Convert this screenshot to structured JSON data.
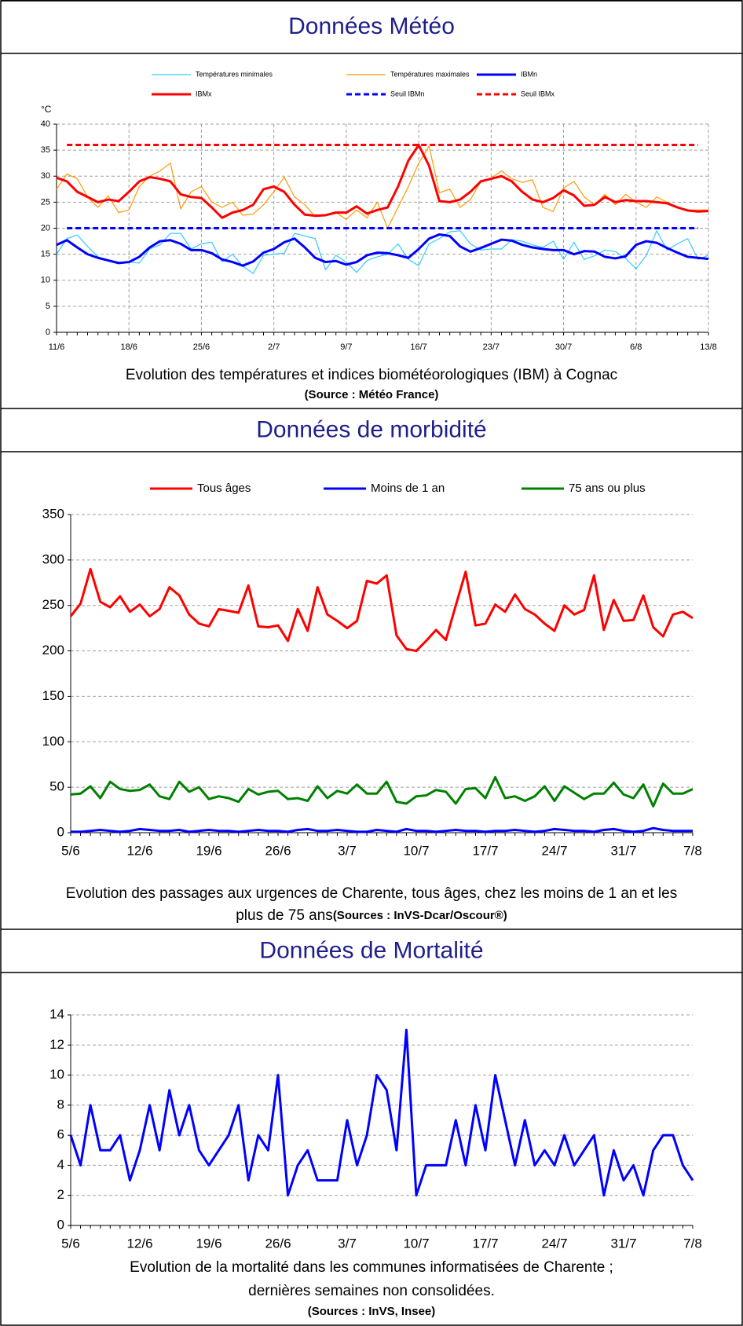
{
  "chart_data": [
    {
      "type": "line",
      "heading": "Données Météo",
      "caption": [
        "Evolution des températures et indices biométéorologiques (IBM) à Cognac"
      ],
      "source": "(Source : Météo France)",
      "ylabel": "°C",
      "categories": [
        "11/6",
        null,
        null,
        null,
        null,
        null,
        null,
        "18/6",
        null,
        null,
        null,
        null,
        null,
        null,
        "25/6",
        null,
        null,
        null,
        null,
        null,
        null,
        "2/7",
        null,
        null,
        null,
        null,
        null,
        null,
        "9/7",
        null,
        null,
        null,
        null,
        null,
        null,
        "16/7",
        null,
        null,
        null,
        null,
        null,
        null,
        "23/7",
        null,
        null,
        null,
        null,
        null,
        null,
        "30/7",
        null,
        null,
        null,
        null,
        null,
        null,
        "6/8",
        null,
        null,
        null,
        null,
        null,
        null,
        "13/8"
      ],
      "ylim": [
        0,
        40
      ],
      "yticks": [
        0,
        5,
        10,
        15,
        20,
        25,
        30,
        35,
        40
      ],
      "grid": "both",
      "series": [
        {
          "name": "Températures minimales",
          "color": "#33ccff",
          "thick": false,
          "dashed": false,
          "values": [
            15,
            18,
            18.7,
            16.5,
            14.5,
            13.7,
            13.5,
            13.5,
            13.3,
            16,
            16.8,
            19,
            19,
            16,
            17,
            17.3,
            13.5,
            15,
            12.7,
            11.3,
            14.8,
            15,
            15.2,
            19,
            18.5,
            18,
            12,
            14.8,
            13.5,
            11.5,
            13.8,
            14.5,
            15,
            17,
            14,
            12.8,
            17,
            18,
            19.3,
            19.5,
            17,
            15.8,
            16,
            16,
            17.8,
            17.5,
            16.8,
            16.3,
            17.5,
            14,
            17.3,
            14,
            14.7,
            15.8,
            15.5,
            14.2,
            12.2,
            14.8,
            19.5,
            15.8,
            17,
            18,
            14,
            14.8
          ]
        },
        {
          "name": "Températures maximales",
          "color": "#ff9900",
          "thick": false,
          "dashed": false,
          "values": [
            27.5,
            30.4,
            29.5,
            26,
            24,
            26.2,
            23,
            23.5,
            28,
            30,
            31,
            32.5,
            23.7,
            27,
            28,
            25,
            24,
            25,
            22.5,
            22.7,
            24.5,
            27,
            29.8,
            26,
            24.5,
            22.2,
            22.5,
            23,
            21.7,
            23.5,
            22,
            25,
            20,
            24,
            28,
            32.5,
            35.8,
            26.8,
            27.5,
            24,
            25.5,
            29,
            29.6,
            31,
            29.5,
            28.8,
            29.3,
            24,
            23.2,
            27.7,
            29,
            26,
            24.5,
            26.5,
            24.5,
            26.5,
            25,
            24,
            26,
            25,
            24,
            23.5,
            23.5,
            23.5
          ]
        },
        {
          "name": "IBMn",
          "color": "#0000ff",
          "thick": true,
          "dashed": false,
          "values": [
            16.8,
            17.7,
            16.3,
            15,
            14.3,
            13.8,
            13.3,
            13.5,
            14.5,
            16.3,
            17.5,
            17.7,
            17,
            15.8,
            15.8,
            15.2,
            14,
            13.5,
            12.8,
            13.6,
            15.3,
            16,
            17.3,
            18,
            16.3,
            14.3,
            13.5,
            13.7,
            13,
            13.5,
            14.8,
            15.3,
            15.2,
            14.8,
            14.3,
            16,
            18,
            18.8,
            18.5,
            16.5,
            15.5,
            16.2,
            17,
            17.8,
            17.6,
            16.8,
            16.3,
            16,
            15.8,
            15.8,
            15,
            15.6,
            15.5,
            14.5,
            14.2,
            14.6,
            16.8,
            17.5,
            17.2,
            16.2,
            15.3,
            14.5,
            14.3,
            14.1
          ]
        },
        {
          "name": "IBMx",
          "color": "#ff0000",
          "thick": true,
          "dashed": false,
          "values": [
            29.7,
            29,
            27,
            26,
            25,
            25.5,
            25.2,
            27,
            29,
            29.8,
            29.5,
            29,
            26.5,
            26,
            25.8,
            24,
            22,
            23,
            23.5,
            24.5,
            27.5,
            28,
            27,
            24.5,
            22.6,
            22.4,
            22.5,
            23,
            23,
            24.2,
            22.8,
            23.5,
            24,
            28,
            33,
            36,
            32,
            25.2,
            25,
            25.5,
            27,
            29,
            29.5,
            30,
            29,
            27,
            25.5,
            25,
            25.8,
            27.3,
            26.3,
            24.3,
            24.5,
            26,
            25,
            25.4,
            25.2,
            25.2,
            25,
            24.8,
            24,
            23.4,
            23.2,
            23.3
          ]
        },
        {
          "name": "Seuil IBMn",
          "color": "#0000ff",
          "thick": true,
          "dashed": true,
          "values": [
            null,
            20,
            20,
            20,
            20,
            20,
            20,
            20,
            20,
            20,
            20,
            20,
            20,
            20,
            20,
            20,
            20,
            20,
            20,
            20,
            20,
            20,
            20,
            20,
            20,
            20,
            20,
            20,
            20,
            20,
            20,
            20,
            20,
            20,
            20,
            20,
            20,
            20,
            20,
            20,
            20,
            20,
            20,
            20,
            20,
            20,
            20,
            20,
            20,
            20,
            20,
            20,
            20,
            20,
            20,
            20,
            20,
            20,
            20,
            20,
            20,
            20,
            20,
            null
          ]
        },
        {
          "name": "Seuil IBMx",
          "color": "#ff0000",
          "thick": true,
          "dashed": true,
          "values": [
            null,
            36,
            36,
            36,
            36,
            36,
            36,
            36,
            36,
            36,
            36,
            36,
            36,
            36,
            36,
            36,
            36,
            36,
            36,
            36,
            36,
            36,
            36,
            36,
            36,
            36,
            36,
            36,
            36,
            36,
            36,
            36,
            36,
            36,
            36,
            36,
            36,
            36,
            36,
            36,
            36,
            36,
            36,
            36,
            36,
            36,
            36,
            36,
            36,
            36,
            36,
            36,
            36,
            36,
            36,
            36,
            36,
            36,
            36,
            36,
            36,
            36,
            36,
            null
          ]
        }
      ]
    },
    {
      "type": "line",
      "heading": "Données de morbidité",
      "caption": [
        "Evolution des passages aux urgences de Charente, tous âges, chez les moins de 1 an et les",
        "plus de 75 ans"
      ],
      "source": "(Sources : InVS-Dcar/Oscour®)",
      "categories": [
        "5/6",
        null,
        null,
        null,
        null,
        null,
        null,
        "12/6",
        null,
        null,
        null,
        null,
        null,
        null,
        "19/6",
        null,
        null,
        null,
        null,
        null,
        null,
        "26/6",
        null,
        null,
        null,
        null,
        null,
        null,
        "3/7",
        null,
        null,
        null,
        null,
        null,
        null,
        "10/7",
        null,
        null,
        null,
        null,
        null,
        null,
        "17/7",
        null,
        null,
        null,
        null,
        null,
        null,
        "24/7",
        null,
        null,
        null,
        null,
        null,
        null,
        "31/7",
        null,
        null,
        null,
        null,
        null,
        null,
        "7/8"
      ],
      "ylim": [
        0,
        350
      ],
      "yticks": [
        0,
        50,
        100,
        150,
        200,
        250,
        300,
        350
      ],
      "grid": "y",
      "series": [
        {
          "name": "Tous âges",
          "color": "#ff0000",
          "thick": true,
          "dashed": false,
          "values": [
            238,
            252,
            290,
            254,
            248,
            260,
            243,
            251,
            238,
            246,
            270,
            261,
            240,
            230,
            227,
            246,
            244,
            242,
            272,
            227,
            226,
            228,
            211,
            246,
            222,
            270,
            240,
            233,
            225,
            233,
            277,
            274,
            283,
            217,
            202,
            200,
            211,
            223,
            212,
            250,
            287,
            228,
            230,
            251,
            243,
            262,
            246,
            240,
            230,
            222,
            250,
            240,
            245,
            283,
            223,
            256,
            233,
            234,
            261,
            226,
            216,
            240,
            243,
            236
          ]
        },
        {
          "name": "Moins de 1 an",
          "color": "#0000ff",
          "thick": true,
          "dashed": false,
          "values": [
            1,
            1,
            2,
            3,
            2,
            1,
            2,
            4,
            3,
            2,
            2,
            3,
            1,
            2,
            3,
            2,
            2,
            1,
            2,
            3,
            2,
            2,
            1,
            3,
            4,
            2,
            2,
            3,
            2,
            1,
            1,
            3,
            2,
            1,
            4,
            2,
            2,
            1,
            2,
            3,
            2,
            2,
            1,
            2,
            2,
            3,
            2,
            1,
            2,
            4,
            3,
            2,
            2,
            1,
            3,
            4,
            2,
            1,
            2,
            5,
            3,
            2,
            2,
            2
          ]
        },
        {
          "name": "75 ans ou plus",
          "color": "#008000",
          "thick": true,
          "dashed": false,
          "values": [
            42,
            43,
            51,
            38,
            56,
            48,
            46,
            47,
            53,
            40,
            37,
            56,
            45,
            50,
            37,
            40,
            38,
            34,
            48,
            42,
            45,
            46,
            37,
            38,
            35,
            51,
            38,
            46,
            43,
            53,
            43,
            43,
            56,
            34,
            32,
            40,
            41,
            47,
            45,
            32,
            48,
            49,
            38,
            61,
            38,
            40,
            35,
            40,
            51,
            35,
            51,
            44,
            37,
            43,
            43,
            55,
            42,
            38,
            53,
            29,
            54,
            43,
            43,
            48
          ]
        }
      ]
    },
    {
      "type": "line",
      "heading": "Données de Mortalité",
      "caption": [
        "Evolution de la mortalité dans les communes informatisées de Charente ;",
        "dernières semaines non consolidées."
      ],
      "source": "(Sources : InVS, Insee)",
      "categories": [
        "5/6",
        null,
        null,
        null,
        null,
        null,
        null,
        "12/6",
        null,
        null,
        null,
        null,
        null,
        null,
        "19/6",
        null,
        null,
        null,
        null,
        null,
        null,
        "26/6",
        null,
        null,
        null,
        null,
        null,
        null,
        "3/7",
        null,
        null,
        null,
        null,
        null,
        null,
        "10/7",
        null,
        null,
        null,
        null,
        null,
        null,
        "17/7",
        null,
        null,
        null,
        null,
        null,
        null,
        "24/7",
        null,
        null,
        null,
        null,
        null,
        null,
        "31/7",
        null,
        null,
        null,
        null,
        null,
        null,
        "7/8"
      ],
      "ylim": [
        0,
        14
      ],
      "yticks": [
        0,
        2,
        4,
        6,
        8,
        10,
        12,
        14
      ],
      "grid": "y",
      "color": "#0000ff",
      "values": [
        6,
        4,
        8,
        5,
        5,
        6,
        3,
        5,
        8,
        5,
        9,
        6,
        8,
        5,
        4,
        5,
        6,
        8,
        3,
        6,
        5,
        10,
        2,
        4,
        5,
        3,
        3,
        3,
        7,
        4,
        6,
        10,
        9,
        5,
        13,
        2,
        4,
        4,
        4,
        7,
        4,
        8,
        5,
        10,
        7,
        4,
        7,
        4,
        5,
        4,
        6,
        4,
        5,
        6,
        2,
        5,
        3,
        4,
        2,
        5,
        6,
        6,
        4,
        3
      ]
    }
  ]
}
